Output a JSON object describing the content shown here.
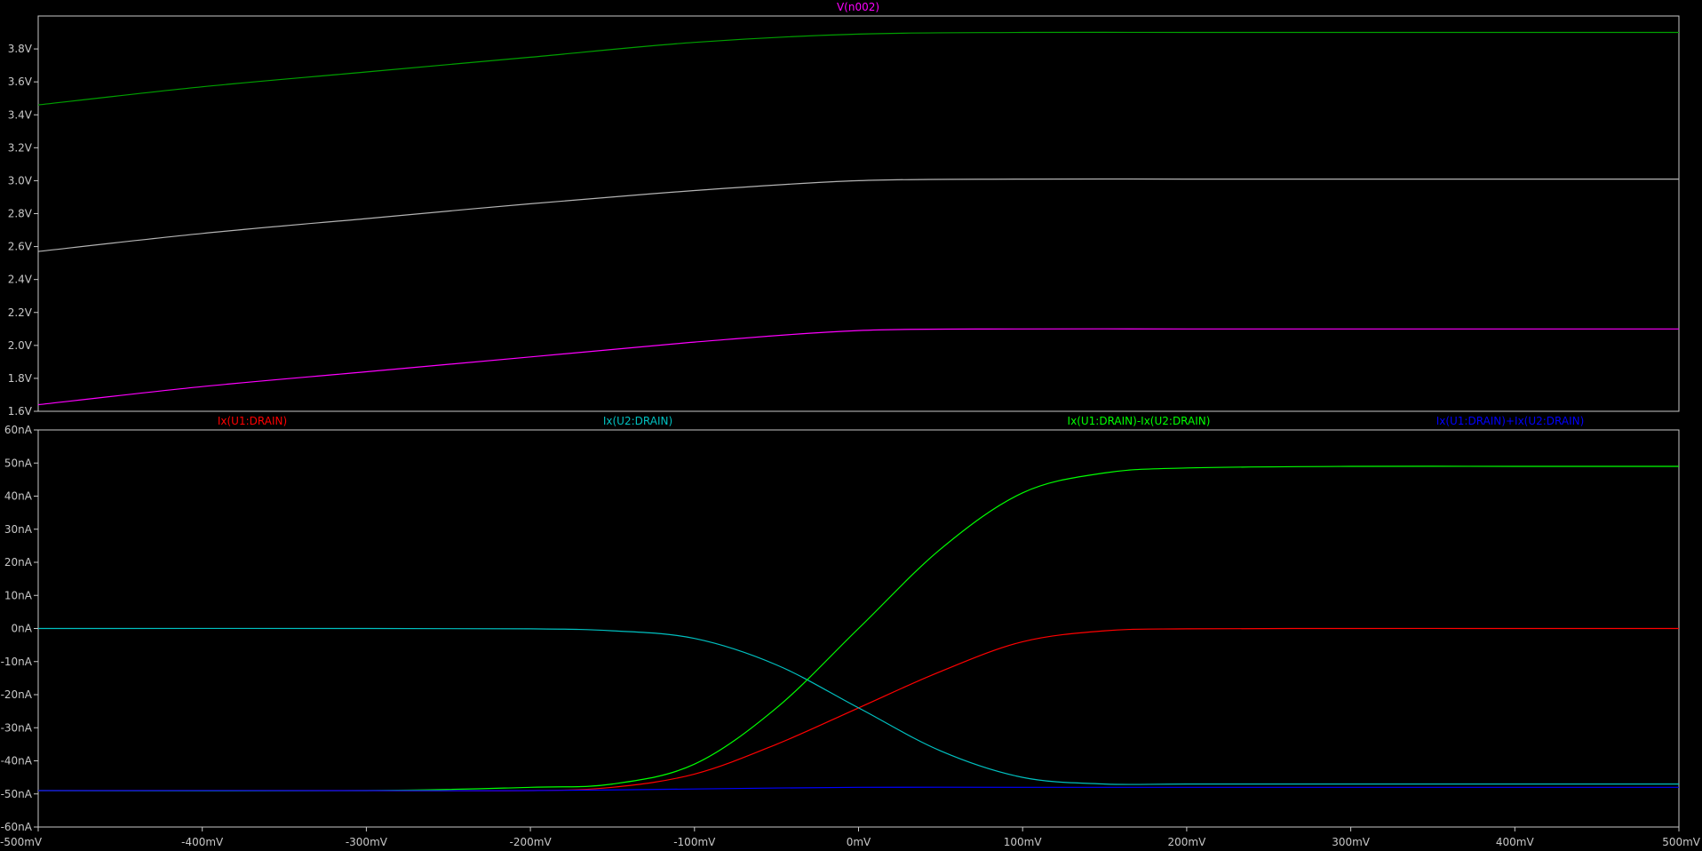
{
  "chart_data": [
    {
      "type": "line",
      "title": "V(n002)",
      "title_color": "#ff00ff",
      "xlabel": "",
      "ylabel": "",
      "xlim": [
        -500,
        500
      ],
      "ylim": [
        1.6,
        4.0
      ],
      "xticks": [
        -500,
        -400,
        -300,
        -200,
        -100,
        0,
        100,
        200,
        300,
        400,
        500
      ],
      "yticks": [
        1.6,
        1.8,
        2.0,
        2.2,
        2.4,
        2.6,
        2.8,
        3.0,
        3.2,
        3.4,
        3.6,
        3.8
      ],
      "ytick_labels": [
        "1.6V",
        "1.8V",
        "2.0V",
        "2.2V",
        "2.4V",
        "2.6V",
        "2.8V",
        "3.0V",
        "3.2V",
        "3.4V",
        "3.6V",
        "3.8V"
      ],
      "grid": false,
      "series": [
        {
          "color": "#00a000",
          "x": [
            -500,
            -400,
            -300,
            -200,
            -100,
            0,
            100,
            200,
            300,
            400,
            500
          ],
          "values": [
            3.46,
            3.57,
            3.66,
            3.75,
            3.84,
            3.89,
            3.9,
            3.9,
            3.9,
            3.9,
            3.9
          ]
        },
        {
          "color": "#b4b4b4",
          "x": [
            -500,
            -400,
            -300,
            -200,
            -100,
            0,
            100,
            200,
            300,
            400,
            500
          ],
          "values": [
            2.57,
            2.68,
            2.77,
            2.86,
            2.94,
            3.0,
            3.01,
            3.01,
            3.01,
            3.01,
            3.01
          ]
        },
        {
          "color": "#ff00ff",
          "x": [
            -500,
            -400,
            -300,
            -200,
            -100,
            0,
            100,
            200,
            300,
            400,
            500
          ],
          "values": [
            1.64,
            1.75,
            1.84,
            1.93,
            2.02,
            2.09,
            2.1,
            2.1,
            2.1,
            2.1,
            2.1
          ]
        }
      ]
    },
    {
      "type": "line",
      "xlabel": "",
      "ylabel": "",
      "xlim": [
        -500,
        500
      ],
      "ylim": [
        -60,
        60
      ],
      "xticks": [
        -500,
        -400,
        -300,
        -200,
        -100,
        0,
        100,
        200,
        300,
        400,
        500
      ],
      "xtick_labels": [
        "-500mV",
        "-400mV",
        "-300mV",
        "-200mV",
        "-100mV",
        "0mV",
        "100mV",
        "200mV",
        "300mV",
        "400mV",
        "500mV"
      ],
      "yticks": [
        -60,
        -50,
        -40,
        -30,
        -20,
        -10,
        0,
        10,
        20,
        30,
        40,
        50,
        60
      ],
      "ytick_labels": [
        "-60nA",
        "-50nA",
        "-40nA",
        "-30nA",
        "-20nA",
        "-10nA",
        "0nA",
        "10nA",
        "20nA",
        "30nA",
        "40nA",
        "50nA",
        "60nA"
      ],
      "grid": false,
      "legend": [
        {
          "label": "Ix(U1:DRAIN)",
          "color": "#ff0000"
        },
        {
          "label": "Ix(U2:DRAIN)",
          "color": "#00c0c0"
        },
        {
          "label": "Ix(U1:DRAIN)-Ix(U2:DRAIN)",
          "color": "#00ff00"
        },
        {
          "label": "Ix(U1:DRAIN)+Ix(U2:DRAIN)",
          "color": "#0000ff"
        }
      ],
      "series": [
        {
          "name": "Ix(U1:DRAIN)",
          "color": "#ff0000",
          "x": [
            -500,
            -300,
            -200,
            -150,
            -100,
            -50,
            0,
            50,
            100,
            150,
            200,
            300,
            400,
            500
          ],
          "values": [
            -49,
            -49,
            -49,
            -48,
            -44,
            -35,
            -24,
            -13,
            -4,
            -0.7,
            -0.1,
            0,
            0,
            0
          ]
        },
        {
          "name": "Ix(U2:DRAIN)",
          "color": "#00c0c0",
          "x": [
            -500,
            -300,
            -200,
            -150,
            -100,
            -50,
            0,
            50,
            100,
            150,
            200,
            300,
            400,
            500
          ],
          "values": [
            0,
            0,
            -0.1,
            -0.7,
            -3,
            -11,
            -24,
            -37,
            -45,
            -47,
            -47,
            -47,
            -47,
            -47
          ]
        },
        {
          "name": "Ix(U1:DRAIN)-Ix(U2:DRAIN)",
          "color": "#00ff00",
          "x": [
            -500,
            -300,
            -200,
            -150,
            -100,
            -50,
            0,
            50,
            100,
            150,
            200,
            300,
            400,
            500
          ],
          "values": [
            -49,
            -49,
            -48,
            -47,
            -41,
            -24,
            0,
            24,
            41,
            47,
            48.5,
            49,
            49,
            49
          ]
        },
        {
          "name": "Ix(U1:DRAIN)+Ix(U2:DRAIN)",
          "color": "#0000ff",
          "x": [
            -500,
            -300,
            -200,
            -100,
            0,
            100,
            200,
            300,
            400,
            500
          ],
          "values": [
            -49,
            -49,
            -49,
            -48.5,
            -48,
            -48,
            -48,
            -48,
            -48,
            -48
          ]
        }
      ]
    }
  ]
}
